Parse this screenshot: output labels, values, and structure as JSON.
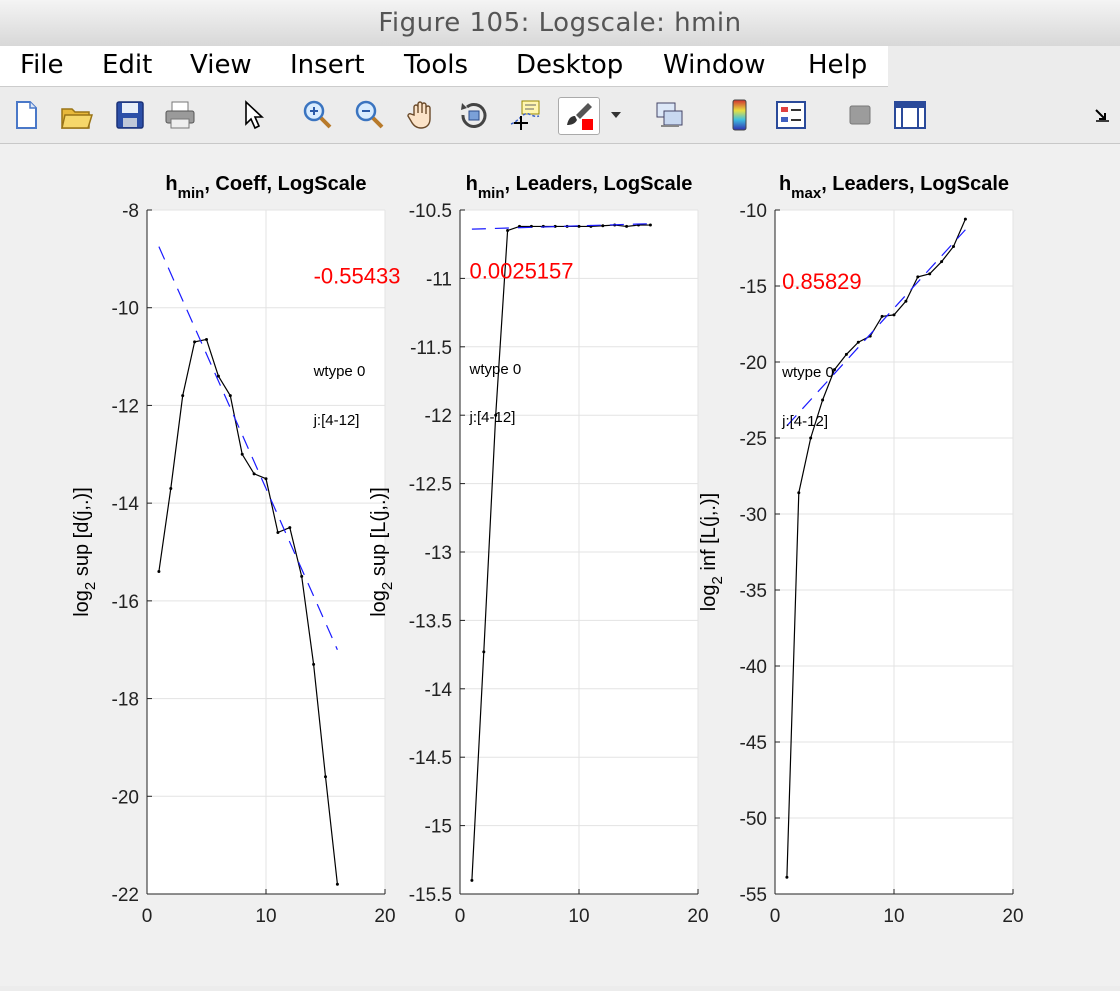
{
  "window": {
    "title": "Figure 105: Logscale: hmin"
  },
  "menu": [
    "File",
    "Edit",
    "View",
    "Insert",
    "Tools",
    "Desktop",
    "Window",
    "Help"
  ],
  "toolbar": {
    "icons": [
      "new-figure-icon",
      "open-file-icon",
      "save-icon",
      "print-icon",
      "pointer-icon",
      "zoom-in-icon",
      "zoom-out-icon",
      "pan-hand-icon",
      "rotate-3d-icon",
      "data-cursor-icon",
      "brush-icon",
      "brush-dropdown-icon",
      "link-plot-icon",
      "colorbar-icon",
      "legend-icon",
      "hide-plot-tools-icon",
      "show-plot-tools-icon",
      "dock-arrow-icon"
    ]
  },
  "chart_data": [
    {
      "type": "line",
      "title": "h_min, Coeff, LogScale",
      "title_parts": {
        "main": "h",
        "sub": "min",
        "rest": ", Coeff, LogScale"
      },
      "ylabel": "log_2 sup [d(j,.)]",
      "ylabel_parts": {
        "main": "log",
        "sub": "2",
        "rest": " sup [d(j,.)]"
      },
      "xlim": [
        0,
        20
      ],
      "ylim": [
        -22,
        -8
      ],
      "xticks": [
        0,
        10,
        20
      ],
      "xtick_labels": [
        "0",
        "10",
        "20"
      ],
      "yticks": [
        -22,
        -20,
        -18,
        -16,
        -14,
        -12,
        -10,
        -8
      ],
      "ytick_labels": [
        "-22",
        "-20",
        "-18",
        "-16",
        "-14",
        "-12",
        "-10",
        "-8"
      ],
      "grid": true,
      "series": [
        {
          "style": "black-solid",
          "x": [
            1,
            2,
            3,
            4,
            5,
            6,
            7,
            8,
            9,
            10,
            11,
            12,
            13,
            14,
            15,
            16
          ],
          "y": [
            -15.4,
            -13.7,
            -11.8,
            -10.7,
            -10.65,
            -11.4,
            -11.8,
            -13.0,
            -13.4,
            -13.5,
            -14.6,
            -14.5,
            -15.5,
            -17.3,
            -19.6,
            -21.8
          ]
        },
        {
          "style": "blue-dashed",
          "x": [
            1,
            16
          ],
          "y": [
            -8.75,
            -17.0
          ]
        }
      ],
      "annotations": [
        {
          "text": "-0.55433",
          "color": "#ff0000",
          "x": 14,
          "y": -9.5,
          "size": 22
        },
        {
          "text": "wtype 0",
          "color": "#000000",
          "x": 14,
          "y": -11.4,
          "size": 15
        },
        {
          "text": "j:[4-12]",
          "color": "#000000",
          "x": 14,
          "y": -12.4,
          "size": 15
        }
      ]
    },
    {
      "type": "line",
      "title": "h_min, Leaders, LogScale",
      "title_parts": {
        "main": "h",
        "sub": "min",
        "rest": ", Leaders, LogScale"
      },
      "ylabel": "log_2 sup [L(j,.)]",
      "ylabel_parts": {
        "main": "log",
        "sub": "2",
        "rest": " sup [L(j,.)]"
      },
      "xlim": [
        0,
        20
      ],
      "ylim": [
        -15.5,
        -10.5
      ],
      "xticks": [
        0,
        10,
        20
      ],
      "xtick_labels": [
        "0",
        "10",
        "20"
      ],
      "yticks": [
        -15.5,
        -15,
        -14.5,
        -14,
        -13.5,
        -13,
        -12.5,
        -12,
        -11.5,
        -11,
        -10.5
      ],
      "ytick_labels": [
        "-15.5",
        "-15",
        "-14.5",
        "-14",
        "-13.5",
        "-13",
        "-12.5",
        "-12",
        "-11.5",
        "-11",
        "-10.5"
      ],
      "grid": true,
      "series": [
        {
          "style": "black-solid",
          "x": [
            1,
            2,
            3,
            4,
            5,
            6,
            7,
            8,
            9,
            10,
            11,
            12,
            13,
            14,
            15,
            16
          ],
          "y": [
            -15.4,
            -13.73,
            -12.0,
            -10.65,
            -10.62,
            -10.62,
            -10.62,
            -10.62,
            -10.62,
            -10.62,
            -10.62,
            -10.615,
            -10.61,
            -10.62,
            -10.61,
            -10.61
          ]
        },
        {
          "style": "blue-dashed",
          "x": [
            1,
            16
          ],
          "y": [
            -10.64,
            -10.6
          ]
        }
      ],
      "annotations": [
        {
          "text": "0.0025157",
          "color": "#ff0000",
          "x": 0.8,
          "y": -11.0,
          "size": 22
        },
        {
          "text": "wtype 0",
          "color": "#000000",
          "x": 0.8,
          "y": -11.7,
          "size": 15
        },
        {
          "text": "j:[4-12]",
          "color": "#000000",
          "x": 0.8,
          "y": -12.05,
          "size": 15
        }
      ]
    },
    {
      "type": "line",
      "title": "h_max, Leaders, LogScale",
      "title_parts": {
        "main": "h",
        "sub": "max",
        "rest": ", Leaders, LogScale"
      },
      "ylabel": "log_2 inf [L(j,.)]",
      "ylabel_parts": {
        "main": "log",
        "sub": "2",
        "rest": " inf [L(j,.)]"
      },
      "xlim": [
        0,
        20
      ],
      "ylim": [
        -55,
        -10
      ],
      "xticks": [
        0,
        10,
        20
      ],
      "xtick_labels": [
        "0",
        "10",
        "20"
      ],
      "yticks": [
        -55,
        -50,
        -45,
        -40,
        -35,
        -30,
        -25,
        -20,
        -15,
        -10
      ],
      "ytick_labels": [
        "-55",
        "-50",
        "-45",
        "-40",
        "-35",
        "-30",
        "-25",
        "-20",
        "-15",
        "-10"
      ],
      "grid": true,
      "series": [
        {
          "style": "black-solid",
          "x": [
            1,
            2,
            3,
            4,
            5,
            6,
            7,
            8,
            9,
            10,
            11,
            12,
            13,
            14,
            15,
            16
          ],
          "y": [
            -53.9,
            -28.6,
            -25.0,
            -22.5,
            -20.5,
            -19.5,
            -18.7,
            -18.3,
            -17.0,
            -16.9,
            -16.0,
            -14.4,
            -14.2,
            -13.4,
            -12.4,
            -10.6
          ]
        },
        {
          "style": "blue-dashed",
          "x": [
            1,
            16
          ],
          "y": [
            -24.2,
            -11.3
          ]
        }
      ],
      "annotations": [
        {
          "text": "0.85829",
          "color": "#ff0000",
          "x": 0.6,
          "y": -15.2,
          "size": 22
        },
        {
          "text": "wtype 0",
          "color": "#000000",
          "x": 0.6,
          "y": -21.0,
          "size": 15
        },
        {
          "text": "j:[4-12]",
          "color": "#000000",
          "x": 0.6,
          "y": -24.2,
          "size": 15
        }
      ]
    }
  ]
}
